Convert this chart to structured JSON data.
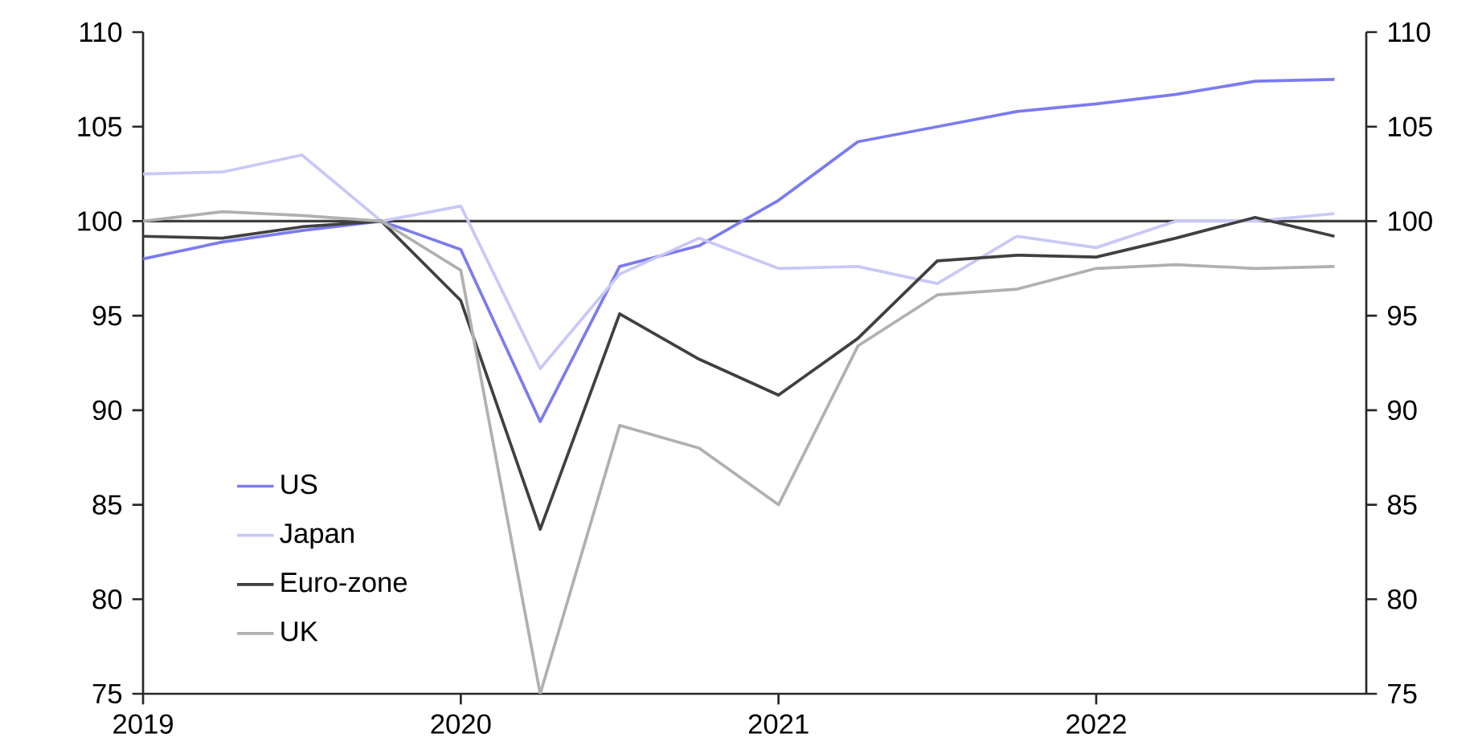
{
  "chart_data": {
    "type": "line",
    "x": [
      2019,
      2019.25,
      2019.5,
      2019.75,
      2020,
      2020.25,
      2020.5,
      2020.75,
      2021,
      2021.25,
      2021.5,
      2021.75,
      2022,
      2022.25,
      2022.5,
      2022.75
    ],
    "series": [
      {
        "name": "US",
        "color": "#7b7bf0",
        "values": [
          98.0,
          98.9,
          99.5,
          100,
          98.5,
          89.4,
          97.6,
          98.7,
          101.1,
          104.2,
          105.0,
          105.8,
          106.2,
          106.7,
          107.4,
          107.5
        ]
      },
      {
        "name": "Japan",
        "color": "#c8c8f8",
        "values": [
          102.5,
          102.6,
          103.5,
          100,
          100.8,
          92.2,
          97.2,
          99.1,
          97.5,
          97.6,
          96.7,
          99.2,
          98.6,
          100.0,
          100.0,
          100.4
        ]
      },
      {
        "name": "Euro-zone",
        "color": "#404040",
        "values": [
          99.2,
          99.1,
          99.7,
          100,
          95.8,
          83.7,
          95.1,
          92.7,
          90.8,
          93.8,
          97.9,
          98.2,
          98.1,
          99.1,
          100.2,
          99.2
        ]
      },
      {
        "name": "UK",
        "color": "#b0b0b0",
        "values": [
          100.0,
          100.5,
          100.3,
          100,
          97.4,
          75.0,
          89.2,
          88.0,
          85.0,
          93.4,
          96.1,
          96.4,
          97.5,
          97.7,
          97.5,
          97.6
        ]
      }
    ],
    "xlim": [
      2019,
      2022.85
    ],
    "xticks": [
      2019,
      2020,
      2021,
      2022
    ],
    "ylim": [
      75,
      110
    ],
    "yticks": [
      75,
      80,
      85,
      90,
      95,
      100,
      105,
      110
    ],
    "y2lim": [
      75,
      110
    ],
    "y2ticks": [
      75,
      80,
      85,
      90,
      95,
      100,
      105,
      110
    ],
    "ref_lines": [
      {
        "axis": "y",
        "value": 100,
        "color": "#404040"
      }
    ],
    "legend": "bottom left",
    "grid": false,
    "marker": "none",
    "line_style": "solid"
  }
}
